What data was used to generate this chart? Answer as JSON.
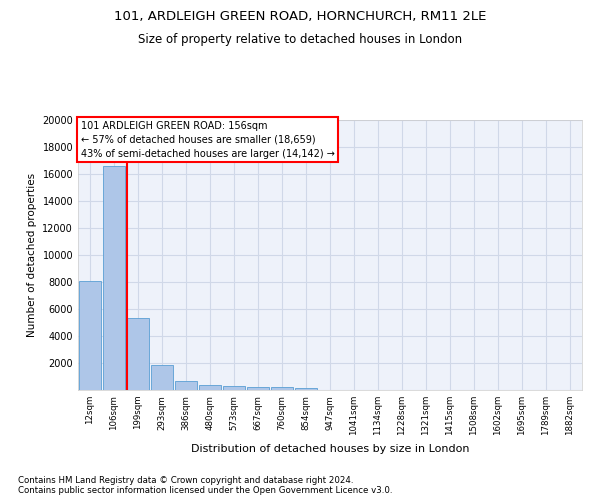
{
  "title1": "101, ARDLEIGH GREEN ROAD, HORNCHURCH, RM11 2LE",
  "title2": "Size of property relative to detached houses in London",
  "xlabel": "Distribution of detached houses by size in London",
  "ylabel": "Number of detached properties",
  "categories": [
    "12sqm",
    "106sqm",
    "199sqm",
    "293sqm",
    "386sqm",
    "480sqm",
    "573sqm",
    "667sqm",
    "760sqm",
    "854sqm",
    "947sqm",
    "1041sqm",
    "1134sqm",
    "1228sqm",
    "1321sqm",
    "1415sqm",
    "1508sqm",
    "1602sqm",
    "1695sqm",
    "1789sqm",
    "1882sqm"
  ],
  "bar_heights": [
    8100,
    16600,
    5300,
    1850,
    650,
    350,
    275,
    220,
    190,
    160,
    0,
    0,
    0,
    0,
    0,
    0,
    0,
    0,
    0,
    0,
    0
  ],
  "bar_color": "#aec6e8",
  "bar_edge_color": "#5a9fd4",
  "grid_color": "#d0d8e8",
  "vline_x": 1.55,
  "vline_color": "red",
  "annotation_text": "101 ARDLEIGH GREEN ROAD: 156sqm\n← 57% of detached houses are smaller (18,659)\n43% of semi-detached houses are larger (14,142) →",
  "annotation_box_color": "white",
  "annotation_box_edge": "red",
  "ylim": [
    0,
    20000
  ],
  "yticks": [
    0,
    2000,
    4000,
    6000,
    8000,
    10000,
    12000,
    14000,
    16000,
    18000,
    20000
  ],
  "footnote": "Contains HM Land Registry data © Crown copyright and database right 2024.\nContains public sector information licensed under the Open Government Licence v3.0.",
  "bg_color": "#eef2fa",
  "fig_width": 6.0,
  "fig_height": 5.0,
  "dpi": 100
}
